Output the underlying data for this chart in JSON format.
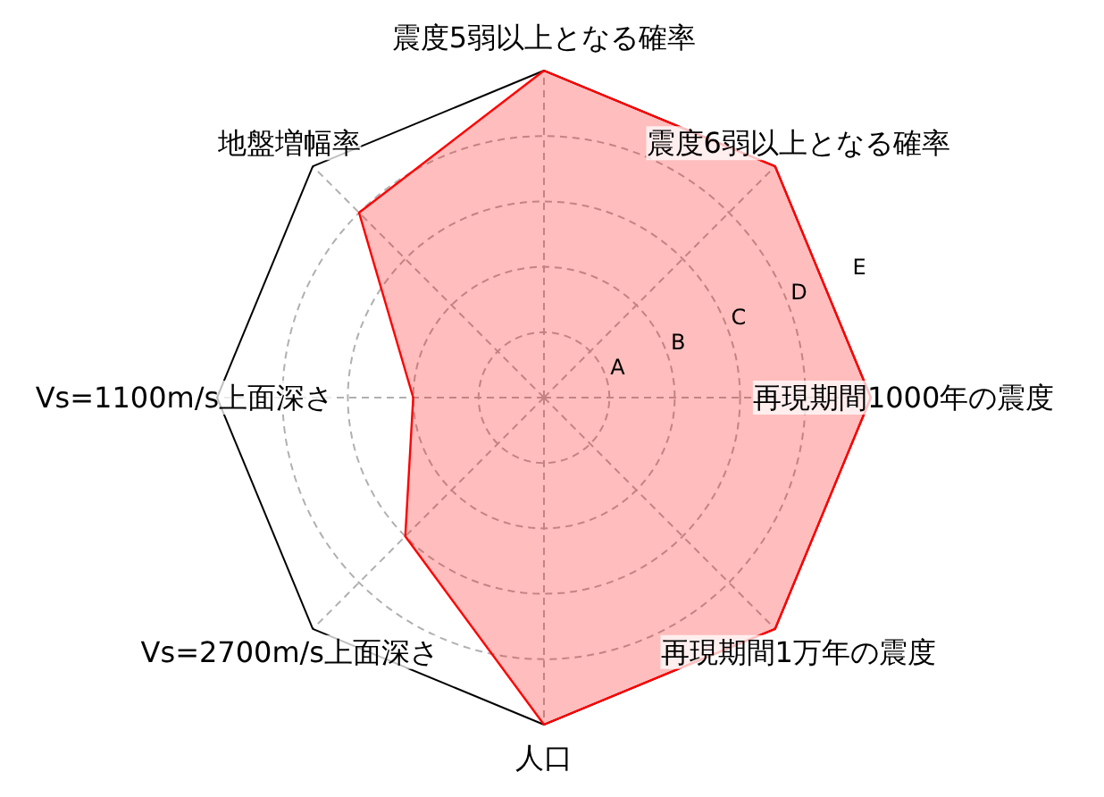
{
  "chart_data": {
    "type": "radar",
    "categories": [
      "震度5弱以上となる確率",
      "震度6弱以上となる確率",
      "再現期間1000年の震度",
      "再現期間1万年の震度",
      "人口",
      "Vs=2700m/s上面深さ",
      "Vs=1100m/s上面深さ",
      "地盤増幅率"
    ],
    "series": [
      {
        "color": "#ff0000",
        "values": [
          5,
          5,
          5,
          5,
          5,
          3,
          2,
          4
        ]
      }
    ],
    "ylim": [
      0,
      5
    ],
    "yticks": [
      {
        "value": 1,
        "label": "A"
      },
      {
        "value": 2,
        "label": "B"
      },
      {
        "value": 3,
        "label": "C"
      },
      {
        "value": 4,
        "label": "D"
      },
      {
        "value": 5,
        "label": "E"
      }
    ],
    "grid": true
  }
}
